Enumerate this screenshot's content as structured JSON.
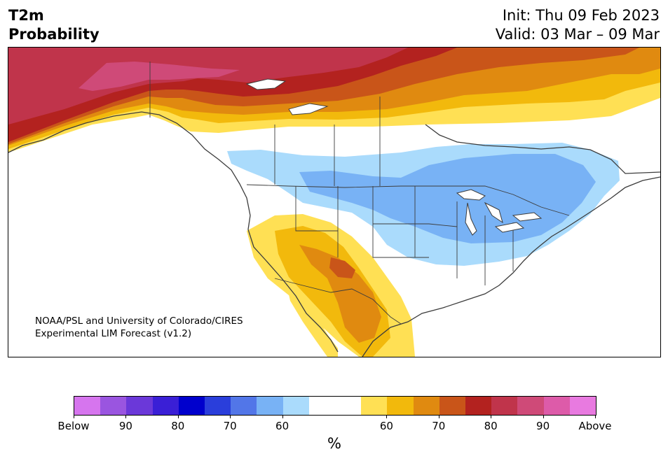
{
  "title": {
    "left_line1": "T2m",
    "left_line2": "Probability",
    "right_line1": "Init: Thu 09 Feb 2023",
    "right_line2": "Valid: 03 Mar – 09 Mar"
  },
  "credit": {
    "line1": "NOAA/PSL and University of Colorado/CIRES",
    "line2": "Experimental LIM Forecast (v1.2)"
  },
  "colorbar": {
    "unit": "%",
    "colors": [
      "#d675ee",
      "#9a55e0",
      "#6b38d9",
      "#3a1fd6",
      "#0000cd",
      "#2a3edb",
      "#5276e8",
      "#78b2f5",
      "#aadbfc",
      "#ffffff",
      "#ffffff",
      "#ffe054",
      "#f2b90c",
      "#e08a10",
      "#c95519",
      "#b3221f",
      "#c0344b",
      "#cf4a78",
      "#dd5ba9",
      "#e87ae0"
    ],
    "ticks": [
      "Below",
      "90",
      "80",
      "70",
      "60",
      "60",
      "70",
      "80",
      "90",
      "Above"
    ]
  },
  "map": {
    "palette": {
      "ocean": "#ffffff",
      "land": "#ffffff",
      "border": "#3c3c3c",
      "above_50": "#ffe054",
      "above_60": "#f2b90c",
      "above_70": "#e08a10",
      "above_75": "#c95519",
      "above_80": "#b3221f",
      "above_85": "#c0344b",
      "above_90": "#cf4a78",
      "below_50": "#aadbfc",
      "below_60": "#78b2f5"
    }
  }
}
